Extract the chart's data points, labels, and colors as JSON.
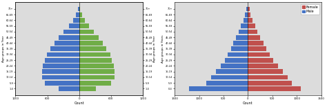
{
  "age_groups_left": [
    "1-4",
    "5-9",
    "10-14",
    "15-19",
    "20-24",
    "25-29",
    "30-34",
    "35-39",
    "40-44",
    "45-49",
    "50-54",
    "55-59",
    "60-64",
    "65-69",
    "70+"
  ],
  "age_groups_right": [
    "0-4",
    "5-9",
    "10-14",
    "15-19",
    "20-24",
    "25-29",
    "30-34",
    "35-39",
    "40-44",
    "45-49",
    "50-54",
    "55-59",
    "60-64",
    "65-69",
    "70+"
  ],
  "left_male": [
    380,
    640,
    700,
    700,
    680,
    650,
    610,
    540,
    470,
    390,
    300,
    195,
    115,
    58,
    28
  ],
  "left_female": [
    320,
    600,
    660,
    670,
    650,
    620,
    585,
    510,
    450,
    370,
    280,
    180,
    105,
    52,
    22
  ],
  "right_male": [
    1200,
    850,
    750,
    650,
    560,
    470,
    410,
    350,
    295,
    240,
    185,
    140,
    90,
    55,
    35
  ],
  "right_female": [
    1080,
    900,
    810,
    710,
    610,
    520,
    450,
    375,
    320,
    255,
    195,
    148,
    96,
    58,
    38
  ],
  "left_bg": "#dcdcdc",
  "right_bg": "#dcdcdc",
  "male_color_left": "#4472c4",
  "female_color_left": "#70ad47",
  "male_color_right": "#4472c4",
  "female_color_right": "#c0504d",
  "left_xlabel": "Count",
  "right_xlabel": "Count",
  "left_ylabel": "Age groups in Year",
  "right_ylabel": "Age groups in Years",
  "left_xlim": [
    -1200,
    1200
  ],
  "right_xlim": [
    -1500,
    1500
  ],
  "left_xticks": [
    -1200,
    -600,
    0,
    600,
    1200
  ],
  "right_xticks": [
    -1500,
    -1000,
    -500,
    0,
    500,
    1000,
    1500
  ]
}
